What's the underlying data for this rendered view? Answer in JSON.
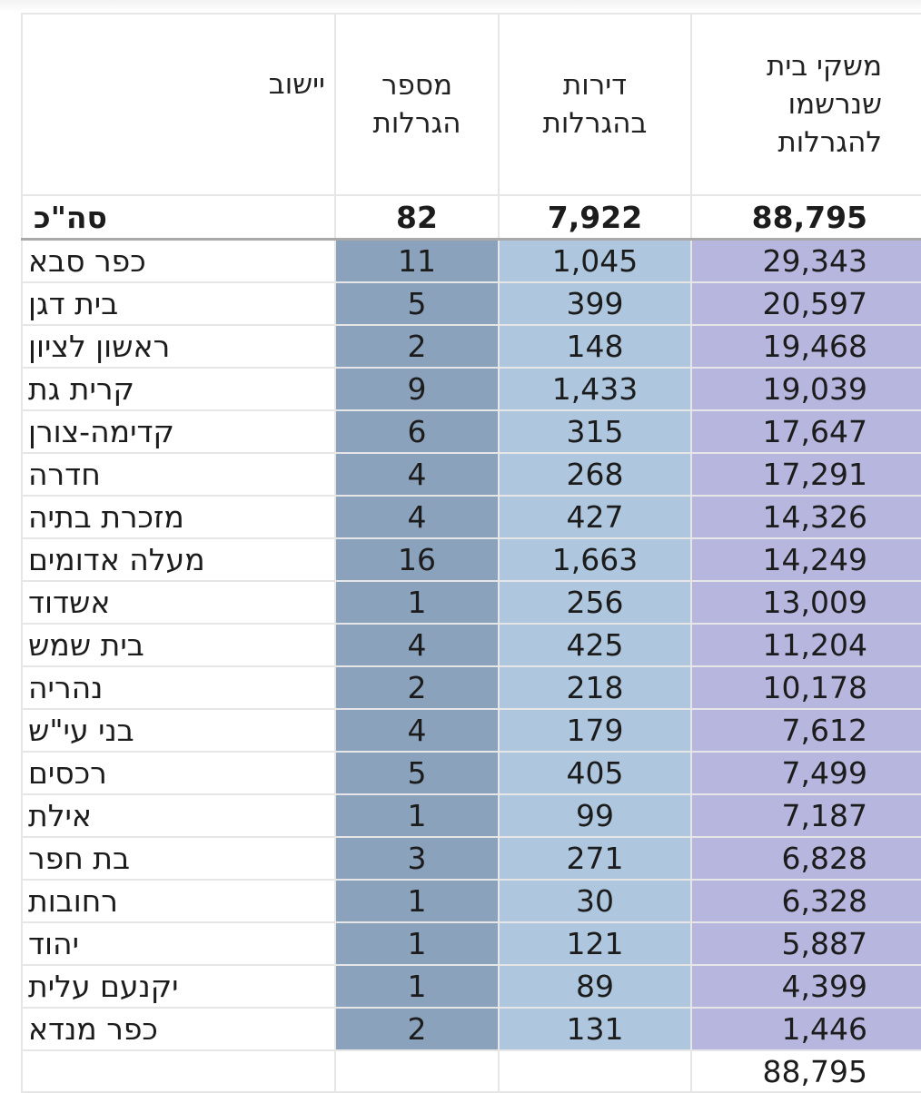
{
  "headers": {
    "city": "יישוב",
    "lotteries": [
      "מספר",
      "הגרלות"
    ],
    "apartments": [
      "דירות",
      "בהגרלות"
    ],
    "households": [
      "משקי בית",
      "שנרשמו",
      "להגרלות"
    ]
  },
  "total": {
    "label": "סה\"כ",
    "lotteries": "82",
    "apartments": "7,922",
    "households": "88,795"
  },
  "rows": [
    {
      "city": "כפר סבא",
      "lotteries": "11",
      "apartments": "1,045",
      "households": "29,343"
    },
    {
      "city": "בית דגן",
      "lotteries": "5",
      "apartments": "399",
      "households": "20,597"
    },
    {
      "city": "ראשון לציון",
      "lotteries": "2",
      "apartments": "148",
      "households": "19,468"
    },
    {
      "city": "קרית גת",
      "lotteries": "9",
      "apartments": "1,433",
      "households": "19,039"
    },
    {
      "city": "קדימה-צורן",
      "lotteries": "6",
      "apartments": "315",
      "households": "17,647"
    },
    {
      "city": "חדרה",
      "lotteries": "4",
      "apartments": "268",
      "households": "17,291"
    },
    {
      "city": "מזכרת בתיה",
      "lotteries": "4",
      "apartments": "427",
      "households": "14,326"
    },
    {
      "city": "מעלה אדומים",
      "lotteries": "16",
      "apartments": "1,663",
      "households": "14,249"
    },
    {
      "city": "אשדוד",
      "lotteries": "1",
      "apartments": "256",
      "households": "13,009"
    },
    {
      "city": "בית שמש",
      "lotteries": "4",
      "apartments": "425",
      "households": "11,204"
    },
    {
      "city": "נהריה",
      "lotteries": "2",
      "apartments": "218",
      "households": "10,178"
    },
    {
      "city": "בני עי\"ש",
      "lotteries": "4",
      "apartments": "179",
      "households": "7,612"
    },
    {
      "city": "רכסים",
      "lotteries": "5",
      "apartments": "405",
      "households": "7,499"
    },
    {
      "city": "אילת",
      "lotteries": "1",
      "apartments": "99",
      "households": "7,187"
    },
    {
      "city": "בת חפר",
      "lotteries": "3",
      "apartments": "271",
      "households": "6,828"
    },
    {
      "city": "רחובות",
      "lotteries": "1",
      "apartments": "30",
      "households": "6,328"
    },
    {
      "city": "יהוד",
      "lotteries": "1",
      "apartments": "121",
      "households": "5,887"
    },
    {
      "city": "יקנעם עלית",
      "lotteries": "1",
      "apartments": "89",
      "households": "4,399"
    },
    {
      "city": "כפר מנדא",
      "lotteries": "2",
      "apartments": "131",
      "households": "1,446"
    }
  ],
  "footer": {
    "households_sum": "88,795"
  },
  "colors": {
    "lotteries_column": "#8ba2bd",
    "apartments_column": "#aec7df",
    "households_column": "#b7b6df"
  }
}
